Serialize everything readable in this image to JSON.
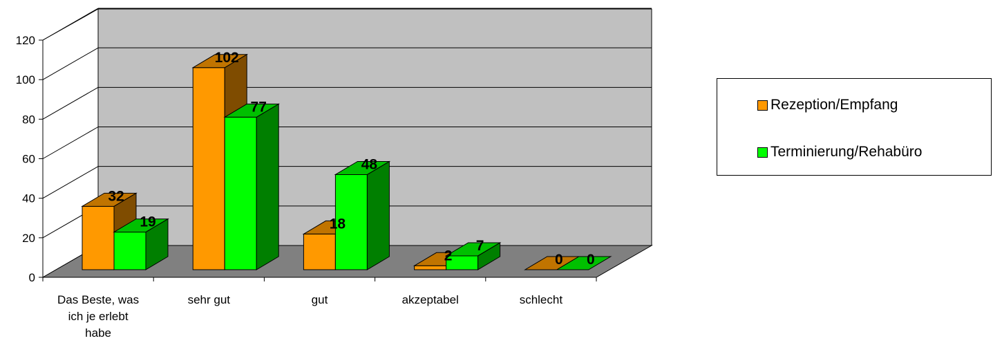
{
  "chart_data": {
    "type": "bar",
    "categories": [
      "Das Beste, was ich je erlebt habe",
      "sehr gut",
      "gut",
      "akzeptabel",
      "schlecht"
    ],
    "category_lines": [
      [
        "Das Beste, was",
        "ich je erlebt",
        "habe"
      ],
      [
        "sehr gut"
      ],
      [
        "gut"
      ],
      [
        "akzeptabel"
      ],
      [
        "schlecht"
      ]
    ],
    "series": [
      {
        "name": "Rezeption/Empfang",
        "values": [
          32,
          102,
          18,
          2,
          0
        ],
        "color": "#ff9900"
      },
      {
        "name": "Terminierung/Rehabüro",
        "values": [
          19,
          77,
          48,
          7,
          0
        ],
        "color": "#00ff00"
      }
    ],
    "y_ticks": [
      "0",
      "20",
      "40",
      "60",
      "80",
      "100",
      "120"
    ],
    "ylim": [
      0,
      120
    ],
    "data_labels": true,
    "grid": true,
    "legend_position": "right",
    "colors": {
      "wall": "#c0c0c0",
      "floor": "#808080",
      "orange_side": "#7f4c00",
      "orange_top": "#c07400",
      "green_side": "#007f00",
      "green_top": "#00c000"
    }
  }
}
